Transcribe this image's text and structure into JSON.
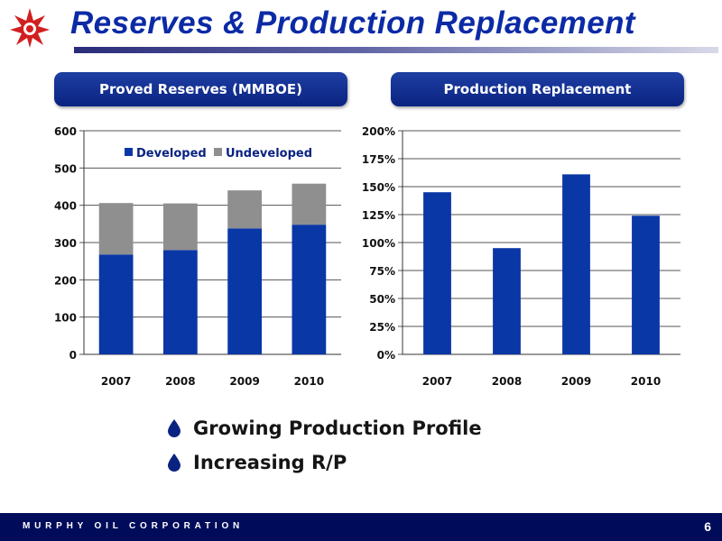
{
  "slide": {
    "title": "Reserves & Production Replacement",
    "footer": "MURPHY OIL CORPORATION",
    "page_number": "6",
    "bullets": [
      "Growing Production Profile",
      "Increasing R/P"
    ],
    "colors": {
      "title": "#0b2aa6",
      "developed": "#0a37a6",
      "undeveloped": "#8f8f8f",
      "footer": "#000c5a",
      "accent_red": "#d21f1f"
    }
  },
  "chart_data": [
    {
      "type": "bar",
      "stacked": true,
      "title": "Proved Reserves (MMBOE)",
      "categories": [
        "2007",
        "2008",
        "2009",
        "2010"
      ],
      "series": [
        {
          "name": "Developed",
          "values": [
            268,
            280,
            338,
            348
          ],
          "color": "#0a37a6"
        },
        {
          "name": "Undeveloped",
          "values": [
            138,
            125,
            102,
            110
          ],
          "color": "#8f8f8f"
        }
      ],
      "ylim": [
        0,
        600
      ],
      "yticks": [
        "0",
        "100",
        "200",
        "300",
        "400",
        "500",
        "600"
      ],
      "grid": true,
      "legend": "top"
    },
    {
      "type": "bar",
      "title": "Production Replacement",
      "categories": [
        "2007",
        "2008",
        "2009",
        "2010"
      ],
      "series": [
        {
          "values": [
            145,
            95,
            161,
            124
          ],
          "color": "#0a37a6"
        }
      ],
      "ylim": [
        0,
        200
      ],
      "yticks": [
        "0%",
        "25%",
        "50%",
        "75%",
        "100%",
        "125%",
        "150%",
        "175%",
        "200%"
      ],
      "grid": true
    }
  ]
}
